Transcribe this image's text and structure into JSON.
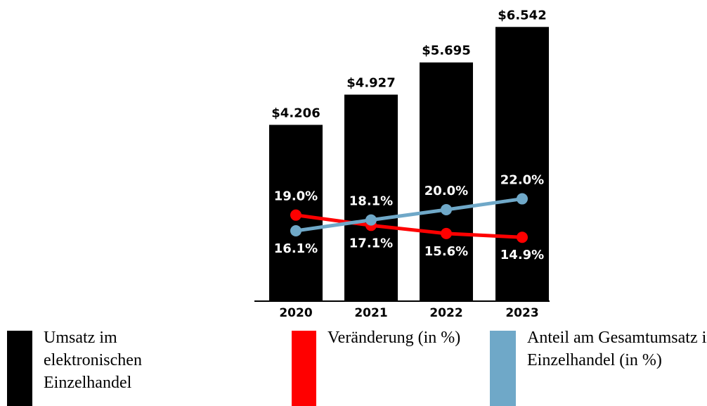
{
  "chart_data": {
    "type": "bar",
    "categories": [
      "2020",
      "2021",
      "2022",
      "2023"
    ],
    "ylim": [
      0,
      7
    ],
    "y2lim": [
      0,
      57
    ],
    "series": [
      {
        "name": "Umsatz im elektronischen Einzelhandel",
        "type": "bar",
        "color": "#000000",
        "values": [
          4.206,
          4.927,
          5.695,
          6.542
        ],
        "value_labels": [
          "$4.206",
          "$4.927",
          "$5.695",
          "$6.542"
        ]
      },
      {
        "name": "Veränderung (in %)",
        "type": "line",
        "axis": "y2",
        "color": "#ff0000",
        "values": [
          19.0,
          17.1,
          15.6,
          14.9
        ],
        "value_labels": [
          "19.0%",
          "17.1%",
          "15.6%",
          "14.9%"
        ]
      },
      {
        "name": "Anteil am Gesamtumsatz im Einzelhandel (in %)",
        "type": "line",
        "axis": "y2",
        "color": "#6fa8c8",
        "values": [
          16.1,
          18.1,
          20.0,
          22.0
        ],
        "value_labels": [
          "16.1%",
          "18.1%",
          "20.0%",
          "22.0%"
        ]
      }
    ]
  }
}
